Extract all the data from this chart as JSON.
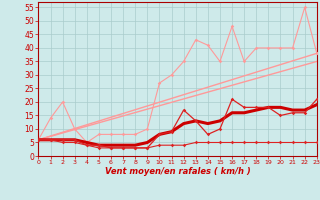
{
  "background_color": "#ceeaea",
  "grid_color": "#aacccc",
  "x_labels": [
    "0",
    "1",
    "2",
    "3",
    "4",
    "5",
    "6",
    "7",
    "8",
    "9",
    "10",
    "11",
    "12",
    "13",
    "14",
    "15",
    "16",
    "17",
    "18",
    "19",
    "20",
    "21",
    "22",
    "23"
  ],
  "xlabel": "Vent moyen/en rafales ( km/h )",
  "ylabel_ticks": [
    0,
    5,
    10,
    15,
    20,
    25,
    30,
    35,
    40,
    45,
    50,
    55
  ],
  "ylim": [
    0,
    57
  ],
  "xlim": [
    0,
    23
  ],
  "series": [
    {
      "name": "rafales_jagged_upper",
      "x": [
        0,
        1,
        2,
        3,
        4,
        5,
        6,
        7,
        8,
        9,
        10,
        11,
        12,
        13,
        14,
        15,
        16,
        17,
        18,
        19,
        20,
        21,
        22,
        23
      ],
      "y": [
        6,
        14,
        20,
        10,
        5,
        8,
        8,
        8,
        8,
        10,
        27,
        30,
        35,
        43,
        41,
        35,
        48,
        35,
        40,
        40,
        40,
        40,
        55,
        38
      ],
      "color": "#ff9999",
      "linewidth": 0.8,
      "marker": "D",
      "markersize": 1.8,
      "zorder": 3
    },
    {
      "name": "linear_trend_upper",
      "x": [
        0,
        23
      ],
      "y": [
        6,
        38
      ],
      "color": "#ff9999",
      "linewidth": 1.0,
      "marker": null,
      "markersize": 0,
      "zorder": 2
    },
    {
      "name": "linear_trend_lower",
      "x": [
        0,
        23
      ],
      "y": [
        6,
        35
      ],
      "color": "#ff9999",
      "linewidth": 1.0,
      "marker": null,
      "markersize": 0,
      "zorder": 2
    },
    {
      "name": "vent_moyen_jagged",
      "x": [
        0,
        1,
        2,
        3,
        4,
        5,
        6,
        7,
        8,
        9,
        10,
        11,
        12,
        13,
        14,
        15,
        16,
        17,
        18,
        19,
        20,
        21,
        22,
        23
      ],
      "y": [
        6,
        6,
        6,
        6,
        4,
        4,
        3,
        3,
        3,
        3,
        8,
        9,
        17,
        13,
        8,
        10,
        21,
        18,
        18,
        18,
        15,
        16,
        16,
        21
      ],
      "color": "#dd2222",
      "linewidth": 0.9,
      "marker": "D",
      "markersize": 1.8,
      "zorder": 5
    },
    {
      "name": "vent_moyen_smooth",
      "x": [
        0,
        1,
        2,
        3,
        4,
        5,
        6,
        7,
        8,
        9,
        10,
        11,
        12,
        13,
        14,
        15,
        16,
        17,
        18,
        19,
        20,
        21,
        22,
        23
      ],
      "y": [
        6,
        6,
        6,
        6,
        5,
        4,
        4,
        4,
        4,
        5,
        8,
        9,
        12,
        13,
        12,
        13,
        16,
        16,
        17,
        18,
        18,
        17,
        17,
        19
      ],
      "color": "#cc0000",
      "linewidth": 2.2,
      "marker": null,
      "markersize": 0,
      "zorder": 4
    },
    {
      "name": "vent_min",
      "x": [
        0,
        1,
        2,
        3,
        4,
        5,
        6,
        7,
        8,
        9,
        10,
        11,
        12,
        13,
        14,
        15,
        16,
        17,
        18,
        19,
        20,
        21,
        22,
        23
      ],
      "y": [
        6,
        6,
        5,
        5,
        4,
        3,
        3,
        3,
        3,
        3,
        4,
        4,
        4,
        5,
        5,
        5,
        5,
        5,
        5,
        5,
        5,
        5,
        5,
        5
      ],
      "color": "#dd2222",
      "linewidth": 0.8,
      "marker": "D",
      "markersize": 1.8,
      "zorder": 5
    }
  ],
  "arrows": {
    "x": [
      0,
      1,
      2,
      3,
      4,
      5,
      6,
      7,
      8,
      9,
      10,
      11,
      12,
      13,
      14,
      15,
      16,
      17,
      18,
      19,
      20,
      21,
      22,
      23
    ],
    "special": [
      1,
      3,
      4,
      6,
      7,
      8
    ],
    "color": "#cc0000"
  }
}
